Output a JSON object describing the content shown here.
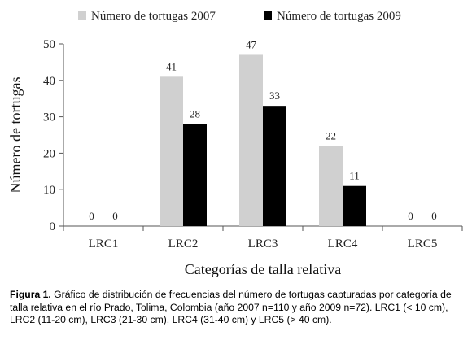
{
  "chart_data": {
    "type": "bar",
    "categories": [
      "LRC1",
      "LRC2",
      "LRC3",
      "LRC4",
      "LRC5"
    ],
    "series": [
      {
        "name": "Número de tortugas 2007",
        "values": [
          0,
          41,
          47,
          22,
          0
        ],
        "color": "#d0d0d0"
      },
      {
        "name": "Número de tortugas 2009",
        "values": [
          0,
          28,
          33,
          11,
          0
        ],
        "color": "#000000"
      }
    ],
    "xlabel": "Categorías de talla relativa",
    "ylabel": "Número de tortugas",
    "ylim": [
      0,
      50
    ],
    "yticks": [
      0,
      10,
      20,
      30,
      40,
      50
    ],
    "legend_position": "top",
    "grid": false
  },
  "caption": {
    "label": "Figura 1.",
    "text": " Gráfico de distribución de frecuencias del número de tortugas capturadas por categoría de talla relativa en el río Prado, Tolima, Colombia (año 2007 n=110 y año 2009 n=72). LRC1 (< 10 cm), LRC2 (11-20 cm), LRC3 (21-30 cm), LRC4 (31-40 cm) y LRC5 (> 40 cm)."
  }
}
